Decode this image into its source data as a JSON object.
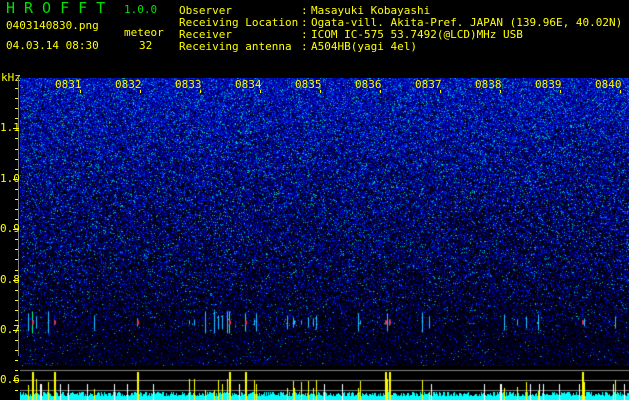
{
  "app": {
    "title": "HROFFT",
    "version": "1.0.0"
  },
  "file": {
    "name": "0403140830.png",
    "datetime": "04.03.14 08:30"
  },
  "meteor": {
    "label": "meteor",
    "count": "32"
  },
  "info": [
    {
      "label": "Observer",
      "value": "Masayuki Kobayashi"
    },
    {
      "label": "Receiving Location",
      "value": "Ogata-vill. Akita-Pref. JAPAN (139.96E, 40.02N)"
    },
    {
      "label": "Receiver",
      "value": "ICOM IC-575 53.7492(@LCD)MHz USB"
    },
    {
      "label": "Receiving antenna",
      "value": "A504HB(yagi 4el)"
    }
  ],
  "chart_data": {
    "type": "heatmap",
    "ylabel": "kHz",
    "y_ticks": [
      "1.1",
      "1.0",
      "0.9",
      "0.8",
      "0.7",
      "0.6"
    ],
    "x_ticks": [
      "0831",
      "0832",
      "0833",
      "0834",
      "0835",
      "0836",
      "0837",
      "0838",
      "0839",
      "0840"
    ],
    "ylim": [
      0.57,
      1.2
    ],
    "meteor_echo_band_khz": 0.715,
    "colors": {
      "axis": "#ffff00",
      "noise": "#1020c0",
      "echo": "#ff2060",
      "counts": "#00ffff",
      "spikes": "#ffff00"
    }
  }
}
